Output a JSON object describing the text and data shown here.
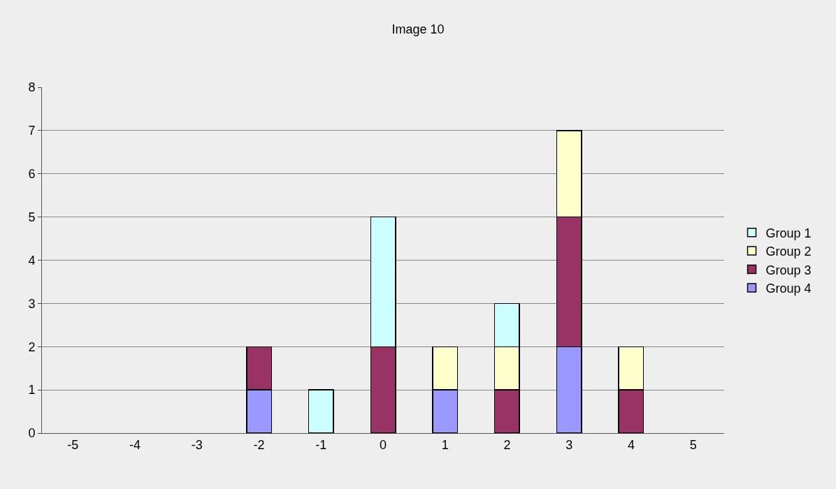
{
  "chart_data": {
    "type": "bar",
    "title": "Image 10",
    "stacked": true,
    "categories": [
      "-5",
      "-4",
      "-3",
      "-2",
      "-1",
      "0",
      "1",
      "2",
      "3",
      "4",
      "5"
    ],
    "series": [
      {
        "name": "Group 4",
        "color": "#9999ff",
        "values": [
          null,
          null,
          null,
          1,
          null,
          null,
          1,
          null,
          2,
          null,
          null
        ]
      },
      {
        "name": "Group 3",
        "color": "#993366",
        "values": [
          null,
          null,
          null,
          1,
          null,
          2,
          null,
          1,
          3,
          1,
          null
        ]
      },
      {
        "name": "Group 2",
        "color": "#ffffcc",
        "values": [
          null,
          null,
          null,
          null,
          null,
          null,
          1,
          1,
          2,
          1,
          null
        ]
      },
      {
        "name": "Group 1",
        "color": "#ccffff",
        "values": [
          null,
          null,
          null,
          null,
          1,
          3,
          null,
          1,
          null,
          null,
          null
        ]
      }
    ],
    "ylim": [
      0,
      8
    ],
    "yticks": [
      0,
      1,
      2,
      3,
      4,
      5,
      6,
      7,
      8
    ],
    "grid": "y",
    "legend": "right"
  }
}
